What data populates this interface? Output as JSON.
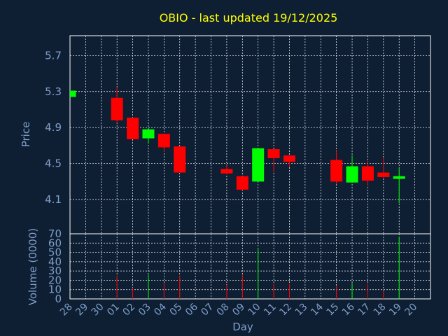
{
  "chart_data": {
    "type": "candlestick",
    "title": "OBIO - last updated 19/12/2025",
    "xlabel": "Day",
    "ylabel": "Price",
    "volume_label": "Volume (0000)",
    "x_ticks": [
      "28",
      "29",
      "30",
      "01",
      "02",
      "03",
      "04",
      "05",
      "06",
      "07",
      "08",
      "09",
      "10",
      "11",
      "12",
      "13",
      "14",
      "15",
      "16",
      "17",
      "18",
      "19",
      "20"
    ],
    "price_ticks": [
      4.1,
      4.5,
      4.9,
      5.3,
      5.7
    ],
    "price_ylim": [
      3.72,
      5.92
    ],
    "volume_ticks": [
      0,
      10,
      20,
      30,
      40,
      50,
      60,
      70
    ],
    "volume_ylim": [
      0,
      70
    ],
    "grid": true,
    "colors": {
      "up": "#00ff00",
      "down": "#ff0000",
      "grid": "#ffffff",
      "axis_text": "#7f9fc8",
      "title": "#ffff00"
    },
    "candles": [
      {
        "day": "28",
        "open": 5.24,
        "high": 5.31,
        "low": 5.24,
        "close": 5.31,
        "volume": 0
      },
      {
        "day": "01",
        "open": 5.23,
        "high": 5.35,
        "low": 4.95,
        "close": 4.98,
        "volume": 25
      },
      {
        "day": "02",
        "open": 5.01,
        "high": 5.01,
        "low": 4.77,
        "close": 4.77,
        "volume": 12
      },
      {
        "day": "03",
        "open": 4.78,
        "high": 4.88,
        "low": 4.72,
        "close": 4.88,
        "volume": 26
      },
      {
        "day": "04",
        "open": 4.83,
        "high": 4.83,
        "low": 4.63,
        "close": 4.68,
        "volume": 17
      },
      {
        "day": "05",
        "open": 4.69,
        "high": 4.69,
        "low": 4.4,
        "close": 4.4,
        "volume": 25
      },
      {
        "day": "08",
        "open": 4.44,
        "high": 4.48,
        "low": 4.38,
        "close": 4.39,
        "volume": 15
      },
      {
        "day": "09",
        "open": 4.36,
        "high": 4.36,
        "low": 4.2,
        "close": 4.21,
        "volume": 26
      },
      {
        "day": "10",
        "open": 4.3,
        "high": 4.67,
        "low": 4.3,
        "close": 4.67,
        "volume": 55
      },
      {
        "day": "11",
        "open": 4.66,
        "high": 4.66,
        "low": 4.4,
        "close": 4.56,
        "volume": 16
      },
      {
        "day": "12",
        "open": 4.59,
        "high": 4.59,
        "low": 4.46,
        "close": 4.52,
        "volume": 16
      },
      {
        "day": "15",
        "open": 4.54,
        "high": 4.64,
        "low": 4.27,
        "close": 4.3,
        "volume": 14
      },
      {
        "day": "16",
        "open": 4.29,
        "high": 4.59,
        "low": 4.29,
        "close": 4.47,
        "volume": 17
      },
      {
        "day": "17",
        "open": 4.47,
        "high": 4.53,
        "low": 4.26,
        "close": 4.31,
        "volume": 16
      },
      {
        "day": "18",
        "open": 4.4,
        "high": 4.57,
        "low": 4.34,
        "close": 4.35,
        "volume": 9
      },
      {
        "day": "19",
        "open": 4.33,
        "high": 4.45,
        "low": 4.06,
        "close": 4.36,
        "volume": 67
      }
    ]
  }
}
